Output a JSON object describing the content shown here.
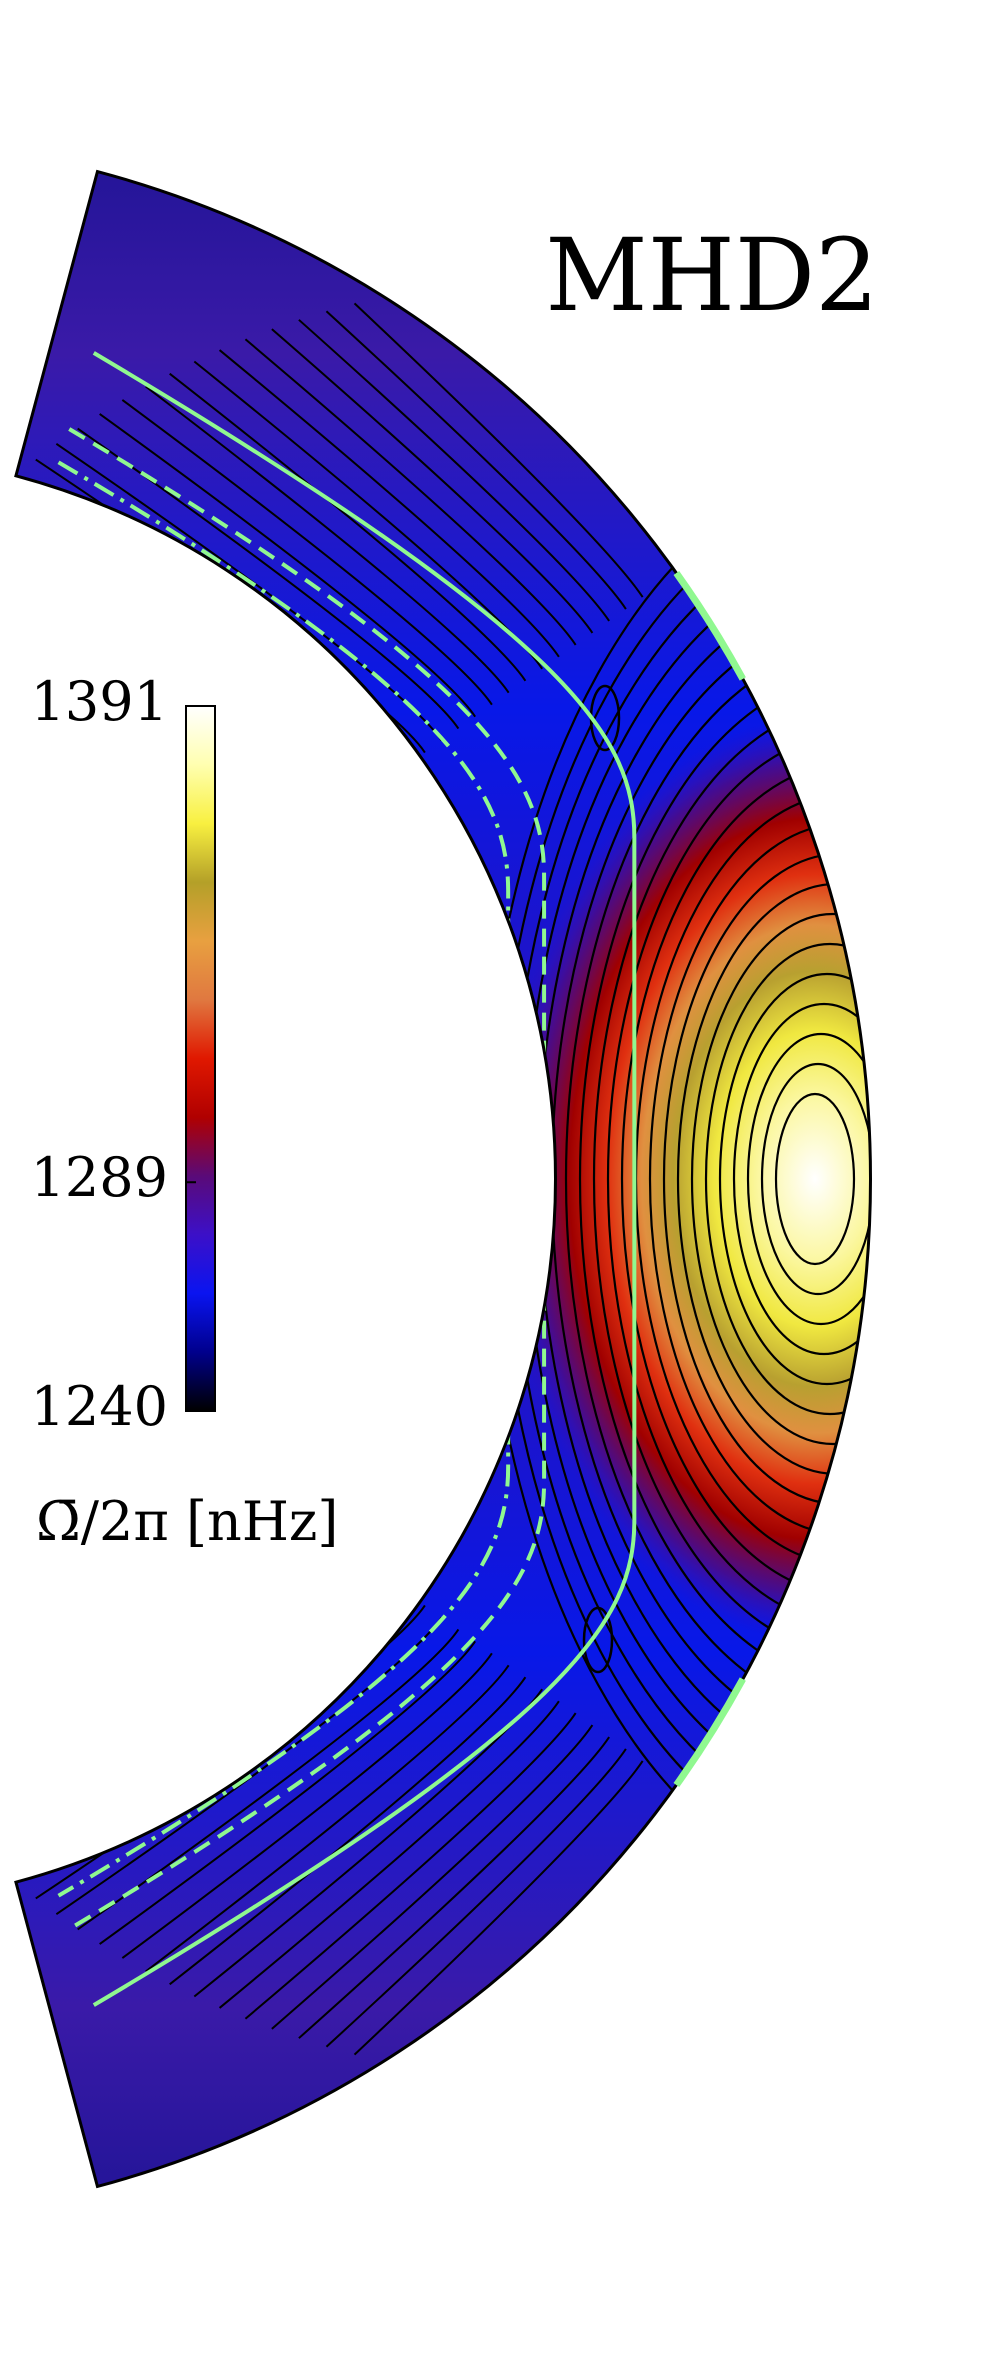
{
  "chart_data": {
    "type": "contour",
    "title": "MHD2",
    "colorbar_label": "Ω̄/2π [nHz]",
    "clim": [
      1240,
      1391
    ],
    "cticks": [
      1240,
      1289,
      1391
    ],
    "colormap": [
      "#000000",
      "#00008c",
      "#0a14f0",
      "#3c10c8",
      "#5a0a78",
      "#b00000",
      "#e01800",
      "#e07840",
      "#e8a040",
      "#b4a028",
      "#f8f040",
      "#ffffb0",
      "#ffffff"
    ],
    "contour_color": "#000000",
    "marker_color": "#90f890"
  }
}
